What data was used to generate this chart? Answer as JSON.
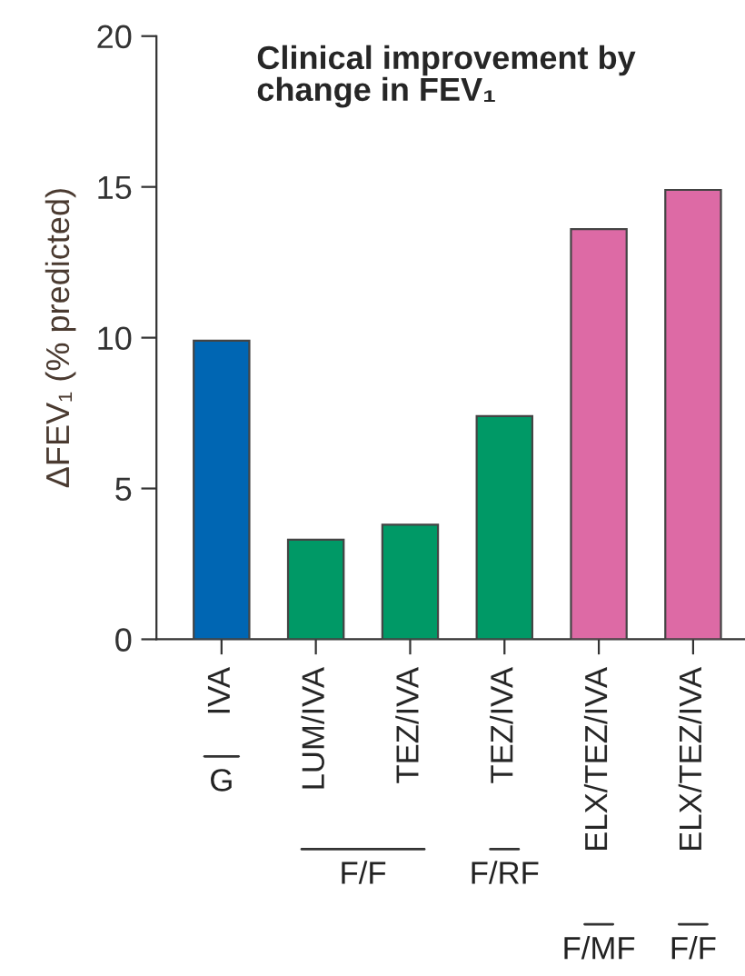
{
  "chart_data": {
    "type": "bar",
    "title": "Clinical improvement by\nchange in FEV₁",
    "ylabel": "ΔFEV₁ (% predicted)",
    "categories": [
      "IVA",
      "LUM/IVA",
      "TEZ/IVA",
      "TEZ/IVA",
      "ELX/TEZ/IVA",
      "ELX/TEZ/IVA"
    ],
    "values": [
      9.9,
      3.3,
      3.8,
      7.4,
      13.6,
      14.9
    ],
    "colors": [
      "#0066b3",
      "#009966",
      "#009966",
      "#009966",
      "#dd6aa5",
      "#dd6aa5"
    ],
    "ylim": [
      0,
      20
    ],
    "yticks": [
      0,
      5,
      10,
      15,
      20
    ],
    "grid": false,
    "legend": false,
    "annotations": [
      "G",
      "F/F",
      "F/RF",
      "F/MF",
      "F/F"
    ]
  }
}
